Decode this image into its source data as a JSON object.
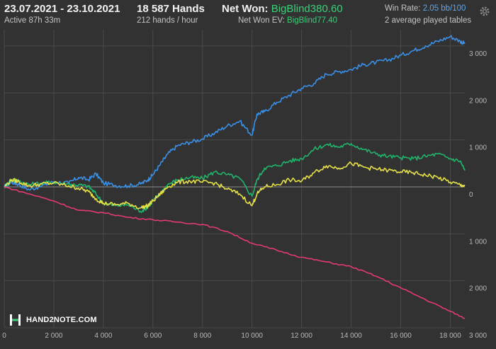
{
  "header": {
    "date_range": "23.07.2021 - 23.10.2021",
    "active": "Active 87h 33m",
    "hands": "18 587 Hands",
    "hands_per_hour": "212 hands / hour",
    "net_won_label": "Net Won:",
    "net_won_value": "BigBlind380.60",
    "net_won_ev_label": "Net Won  EV:",
    "net_won_ev_value": "BigBlind77.40",
    "win_rate_label": "Win Rate:",
    "win_rate_value": "2.05 bb/100",
    "tables": "2 average played tables",
    "settings_icon": "gear-icon"
  },
  "logo": {
    "text": "HAND2NOTE.COM",
    "icon": "h2n-logo-icon"
  },
  "colors": {
    "background": "#323232",
    "grid": "#4a4a4a",
    "zero_line": "#8a8a8a",
    "tick_text": "#b8b8b8",
    "accent_green": "#3ccf7a"
  },
  "chart_data": {
    "type": "line",
    "xlabel": "",
    "ylabel": "",
    "xlim": [
      0,
      18587
    ],
    "ylim": [
      -3000,
      3300
    ],
    "x_ticks": [
      0,
      2000,
      4000,
      6000,
      8000,
      10000,
      12000,
      14000,
      16000,
      18000
    ],
    "x_tick_labels": [
      "0",
      "2 000",
      "4 000",
      "6 000",
      "8 000",
      "10 000",
      "12 000",
      "14 000",
      "16 000",
      "18 000"
    ],
    "y_ticks": [
      3000,
      2000,
      1000,
      0,
      -1000,
      -2000,
      -3000
    ],
    "y_tick_labels": [
      "3 000",
      "2 000",
      "1 000",
      "0",
      "1 000",
      "2 000",
      "3 000"
    ],
    "grid": true,
    "series": [
      {
        "color": "#3a8fe6",
        "x": [
          0,
          300,
          600,
          1000,
          1500,
          2000,
          2600,
          3000,
          3400,
          3700,
          4000,
          4500,
          5000,
          5500,
          5800,
          6000,
          6300,
          6600,
          7000,
          7500,
          8000,
          8500,
          9000,
          9500,
          10000,
          10200,
          10500,
          11000,
          11500,
          12000,
          12500,
          13000,
          13500,
          14000,
          14500,
          15000,
          15500,
          16000,
          16500,
          17000,
          17500,
          18000,
          18400,
          18587
        ],
        "y": [
          0,
          100,
          50,
          -60,
          20,
          110,
          80,
          200,
          150,
          280,
          80,
          30,
          20,
          60,
          150,
          260,
          480,
          700,
          880,
          950,
          1020,
          1150,
          1300,
          1400,
          1100,
          1550,
          1600,
          1800,
          1950,
          2100,
          2200,
          2400,
          2450,
          2500,
          2600,
          2650,
          2700,
          2800,
          2900,
          3000,
          3100,
          3200,
          3100,
          3050
        ]
      },
      {
        "color": "#22b36a",
        "x": [
          0,
          300,
          600,
          1000,
          1500,
          2000,
          2600,
          3000,
          3400,
          3700,
          4000,
          4500,
          5000,
          5500,
          5800,
          6000,
          6300,
          6600,
          7000,
          7500,
          8000,
          8500,
          9000,
          9500,
          10000,
          10200,
          10500,
          11000,
          11500,
          12000,
          12500,
          13000,
          13500,
          14000,
          14500,
          15000,
          15500,
          16000,
          16500,
          17000,
          17500,
          18000,
          18400,
          18587
        ],
        "y": [
          0,
          150,
          120,
          50,
          80,
          100,
          60,
          40,
          10,
          -150,
          -350,
          -400,
          -380,
          -520,
          -430,
          -300,
          -150,
          50,
          150,
          200,
          180,
          320,
          260,
          180,
          -200,
          150,
          400,
          450,
          550,
          600,
          800,
          900,
          850,
          920,
          800,
          700,
          650,
          620,
          600,
          650,
          700,
          600,
          550,
          350
        ]
      },
      {
        "color": "#e6e048",
        "x": [
          0,
          300,
          600,
          1000,
          1500,
          2000,
          2600,
          3000,
          3400,
          3700,
          4000,
          4500,
          5000,
          5500,
          5800,
          6000,
          6300,
          6600,
          7000,
          7500,
          8000,
          8500,
          9000,
          9500,
          10000,
          10200,
          10500,
          11000,
          11500,
          12000,
          12500,
          13000,
          13500,
          14000,
          14500,
          15000,
          15500,
          16000,
          16500,
          17000,
          17500,
          18000,
          18400,
          18587
        ],
        "y": [
          0,
          150,
          110,
          20,
          60,
          80,
          20,
          -30,
          -100,
          -250,
          -350,
          -380,
          -350,
          -450,
          -400,
          -300,
          -150,
          0,
          100,
          120,
          100,
          80,
          -50,
          -150,
          -400,
          -150,
          0,
          50,
          150,
          120,
          300,
          450,
          400,
          500,
          420,
          380,
          350,
          320,
          300,
          250,
          200,
          100,
          40,
          20
        ]
      },
      {
        "color": "#e23a72",
        "x": [
          0,
          1000,
          2000,
          3000,
          4000,
          5000,
          6000,
          7000,
          8000,
          9000,
          10000,
          11000,
          12000,
          13000,
          14000,
          15000,
          16000,
          17000,
          18000,
          18587
        ],
        "y": [
          0,
          -150,
          -300,
          -500,
          -550,
          -650,
          -700,
          -750,
          -800,
          -950,
          -1200,
          -1350,
          -1500,
          -1600,
          -1700,
          -1900,
          -2150,
          -2400,
          -2650,
          -2800
        ]
      }
    ]
  }
}
